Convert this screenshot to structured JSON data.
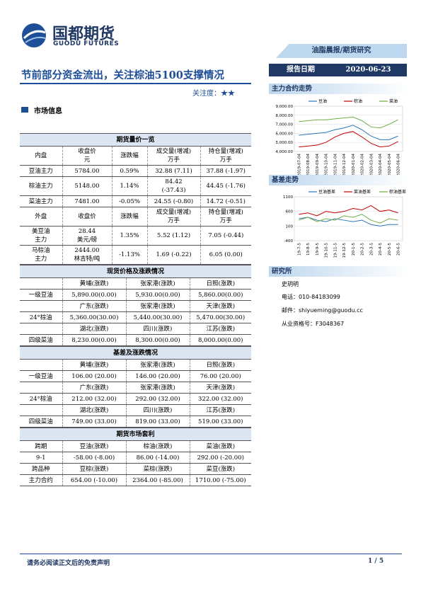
{
  "header": {
    "logo": "国都期货",
    "logo_en": "GUODU FUTURES",
    "column": "油脂晨报/期货研究",
    "date_label": "报告日期",
    "date": "2020-06-23"
  },
  "title": "节前部分资金流出，关注棕油5100支撑情况",
  "attention": "关注度：★★",
  "section": "市场信息",
  "tables": [
    {
      "title": "期货量价一览",
      "rows": [
        [
          "内盘",
          "收盘价\n元",
          "涨跌幅",
          "成交量(增减)\n万手",
          "持仓量(增减)\n万手"
        ],
        [
          "豆油主力",
          "5784.00",
          "0.59%",
          "32.88 (7.11)",
          "37.88 (-1.97)"
        ],
        [
          "棕油主力",
          "5148.00",
          "1.14%",
          "84.42\n(-37.43)",
          "44.45 (-1.76)"
        ],
        [
          "菜油主力",
          "7481.00",
          "-0.05%",
          "24.55 (-0.80)",
          "14.72 (-0.51)"
        ],
        [
          "外盘",
          "收盘价",
          "涨跌幅",
          "成交量(增减)\n万手",
          "持仓量(增减)\n万手"
        ],
        [
          "美豆油\n主力",
          "28.44\n美元/磅",
          "1.35%",
          "5.52 (1.12)",
          "7.05 (-0.44)"
        ],
        [
          "马棕油\n主力",
          "2444.00\n林吉特/吨",
          "-1.13%",
          "1.69 (-0.22)",
          "6.05 (0.00)"
        ]
      ]
    },
    {
      "title": "现货价格及涨跌情况",
      "rows": [
        [
          null,
          "黄埔(涨跌)",
          "张家港(涨跌)",
          "日照(涨跌)"
        ],
        [
          "一级豆油",
          "5,890.00(0.00)",
          "5,930.00(0.00)",
          "5,860.00(0.00)"
        ],
        [
          null,
          "广东(涨跌)",
          "张家港(涨跌)",
          "天津(涨跌)"
        ],
        [
          "24°棕油",
          "5,360.00(30.00)",
          "5,440.00(30.00)",
          "5,470.00(30.00)"
        ],
        [
          null,
          "湖北(涨跌)",
          "四川(涨跌)",
          "江苏(涨跌)"
        ],
        [
          "四级菜油",
          "8,230.00(0.00)",
          "8,300.00(0.00)",
          "8,000.00(0.00)"
        ]
      ]
    },
    {
      "title": "基差及涨跌情况",
      "rows": [
        [
          null,
          "黄埔(涨跌)",
          "张家港(涨跌)",
          "日照(涨跌)"
        ],
        [
          "一级豆油",
          "106.00 (20.00)",
          "146.00 (20.00)",
          "76.00 (20.00)"
        ],
        [
          null,
          "广东(涨跌)",
          "张家港(涨跌)",
          "天津(涨跌)"
        ],
        [
          "24°棕油",
          "212.00 (32.00)",
          "292.00 (32.00)",
          "322.00 (32.00)"
        ],
        [
          null,
          "湖北(涨跌)",
          "四川(涨跌)",
          "江苏(涨跌)"
        ],
        [
          "四级菜油",
          "749.00 (33.00)",
          "819.00 (33.00)",
          "519.00 (33.00)"
        ]
      ]
    },
    {
      "title": "期货市场套利",
      "rows": [
        [
          "跨期",
          "豆油(涨跌)",
          "棕油(涨跌)",
          "菜油(涨跌)"
        ],
        [
          "9-1",
          "-58.00 (-8.00)",
          "86.00 (-14.00)",
          "292.00 (-20.00)"
        ],
        [
          "跨品种",
          "豆棕(涨跌)",
          "菜棕(涨跌)",
          "菜豆(涨跌)"
        ],
        [
          "主力合约",
          "654.00 (-10.00)",
          "2364.00 (-85.00)",
          "1710.00 (-75.00)"
        ]
      ]
    }
  ],
  "chart_data": [
    {
      "type": "line",
      "title": "主力合约走势",
      "categories": [
        "2019-07-04",
        "2019-08-04",
        "2019-09-04",
        "2019-10-04",
        "2019-11-04",
        "2019-12-04",
        "2020-01-04",
        "2020-02-04",
        "2020-03-04",
        "2020-04-04",
        "2020-05-04",
        "2020-06-04"
      ],
      "ylim": [
        4000,
        9000
      ],
      "yticks": [
        {
          "value": 9000,
          "label": "9,000.00"
        },
        {
          "value": 8000,
          "label": "8,000.00"
        },
        {
          "value": 7000,
          "label": "7,000.00"
        },
        {
          "value": 6000,
          "label": "6,000.00"
        },
        {
          "value": 5000,
          "label": "5,000.00"
        },
        {
          "value": 4000,
          "label": "4,000.00"
        }
      ],
      "series": [
        {
          "name": "豆油",
          "color": "#2e75b6",
          "values": [
            5800,
            5900,
            6000,
            6100,
            6400,
            6600,
            6900,
            6400,
            5700,
            5300,
            5300,
            5700
          ]
        },
        {
          "name": "棕油",
          "color": "#c00000",
          "values": [
            4500,
            4600,
            4700,
            5000,
            5600,
            6000,
            6200,
            5600,
            4900,
            4500,
            4600,
            5100
          ]
        },
        {
          "name": "菜油",
          "color": "#70ad47",
          "values": [
            7300,
            7400,
            7500,
            7500,
            7600,
            7700,
            7800,
            7400,
            6700,
            6600,
            7000,
            7500
          ]
        }
      ]
    },
    {
      "type": "line",
      "title": "基差走势",
      "categories": [
        "19-7-5",
        "19-8-5",
        "19-9-5",
        "19-10-5",
        "19-11-5",
        "19-12-5",
        "20-1-5",
        "20-2-5",
        "20-3-5",
        "20-4-5",
        "20-5-5",
        "20-6-5"
      ],
      "ylim": [
        -400,
        1100
      ],
      "yticks": [
        1100,
        600,
        100,
        -400
      ],
      "series": [
        {
          "name": "豆油基差",
          "color": "#2e75b6",
          "values": [
            350,
            400,
            300,
            250,
            350,
            300,
            250,
            300,
            150,
            100,
            150,
            150
          ]
        },
        {
          "name": "菜油基差",
          "color": "#c00000",
          "values": [
            500,
            550,
            450,
            600,
            550,
            600,
            700,
            650,
            800,
            600,
            650,
            550
          ]
        },
        {
          "name": "棕油基差",
          "color": "#70ad47",
          "values": [
            300,
            400,
            250,
            350,
            300,
            450,
            400,
            500,
            300,
            200,
            350,
            300
          ]
        }
      ]
    }
  ],
  "sidebar": {
    "institute": "研究所",
    "author": "史玥明",
    "phone": "电话：010-84183099",
    "email": "邮件：shiyueming@guodu.cc",
    "license": "从业资格号：F3048367"
  },
  "footer": {
    "disclaimer": "请务必阅读正文后的免责声明",
    "page": "1 / 5"
  }
}
